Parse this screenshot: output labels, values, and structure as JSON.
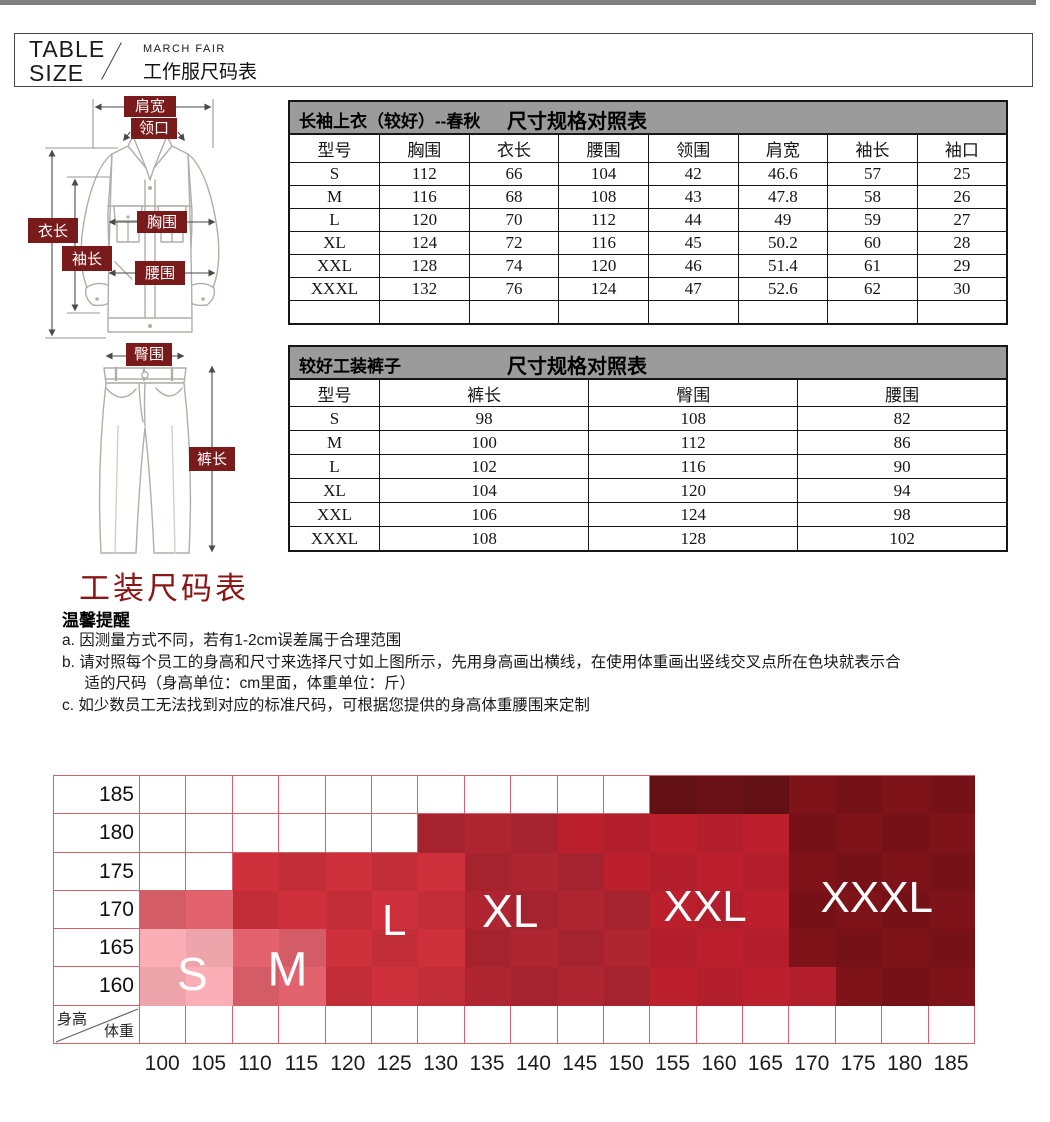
{
  "header": {
    "title_line1": "TABLE",
    "title_line2": "SIZE",
    "brand": "MARCH FAIR",
    "subtitle": "工作服尺码表"
  },
  "jacket_diagram": {
    "labels": {
      "shoulder": "肩宽",
      "collar": "领口",
      "body_length": "衣长",
      "sleeve_length": "袖长",
      "chest": "胸围",
      "waist": "腰围"
    },
    "label_bg": "#7a1b1b"
  },
  "pants_diagram": {
    "labels": {
      "hip": "臀围",
      "pants_length": "裤长"
    },
    "label_bg": "#7a1b1b"
  },
  "tables": [
    {
      "title": "长袖上衣（较好）--春秋",
      "title_right": "尺寸规格对照表",
      "columns": [
        "型号",
        "胸围",
        "衣长",
        "腰围",
        "领围",
        "肩宽",
        "袖长",
        "袖口"
      ],
      "rows": [
        [
          "S",
          "112",
          "66",
          "104",
          "42",
          "46.6",
          "57",
          "25"
        ],
        [
          "M",
          "116",
          "68",
          "108",
          "43",
          "47.8",
          "58",
          "26"
        ],
        [
          "L",
          "120",
          "70",
          "112",
          "44",
          "49",
          "59",
          "27"
        ],
        [
          "XL",
          "124",
          "72",
          "116",
          "45",
          "50.2",
          "60",
          "28"
        ],
        [
          "XXL",
          "128",
          "74",
          "120",
          "46",
          "51.4",
          "61",
          "29"
        ],
        [
          "XXXL",
          "132",
          "76",
          "124",
          "47",
          "52.6",
          "62",
          "30"
        ],
        [
          "",
          "",
          "",
          "",
          "",
          "",
          "",
          ""
        ]
      ]
    },
    {
      "title": "较好工装裤子",
      "title_right": "尺寸规格对照表",
      "columns": [
        "型号",
        "裤长",
        "臀围",
        "腰围"
      ],
      "rows": [
        [
          "S",
          "98",
          "108",
          "82"
        ],
        [
          "M",
          "100",
          "112",
          "86"
        ],
        [
          "L",
          "102",
          "116",
          "90"
        ],
        [
          "XL",
          "104",
          "120",
          "94"
        ],
        [
          "XXL",
          "106",
          "124",
          "98"
        ],
        [
          "XXXL",
          "108",
          "128",
          "102"
        ]
      ]
    }
  ],
  "notice": {
    "title": "工装尺码表",
    "subtitle": "温馨提醒",
    "notes": [
      "a. 因测量方式不同，若有1-2cm误差属于合理范围",
      "b. 请对照每个员工的身高和尺寸来选择尺寸如上图所示，先用身高画出横线，在使用体重画出竖线交叉点所在色块就表示合适的尺码（身高单位：cm里面，体重单位：斤）",
      "c. 如少数员工无法找到对应的标准尺码，可根据您提供的身高体重腰围来定制"
    ]
  },
  "chart_data": {
    "type": "heatmap",
    "title": "工装尺码选择表（身高/体重 对应尺码色块）",
    "y_axis_label": "身高",
    "x_axis_label": "体重",
    "x_values": [
      100,
      105,
      110,
      115,
      120,
      125,
      130,
      135,
      140,
      145,
      150,
      155,
      160,
      165,
      170,
      175,
      180,
      185
    ],
    "y_values": [
      185,
      180,
      175,
      170,
      165,
      160
    ],
    "legend": [
      "S",
      "M",
      "L",
      "XL",
      "XXL",
      "XXXL"
    ],
    "palette": {
      "0": "#ffffff",
      "1": "#f4a9b0",
      "2": "#db5f6a",
      "3": "#c82f3a",
      "4": "#aa2430",
      "5": "#b71f2c",
      "6": "#7a1318",
      "7": "#651014"
    },
    "grid_line_color": "#d4626e",
    "cells": [
      "000000000007776666",
      "000000444555556666",
      "003333344455556666",
      "223333344445556666",
      "112233344445556666",
      "112233344445555666"
    ],
    "size_labels": [
      {
        "label": "S",
        "col": 1.15,
        "row": 5.2,
        "size": 46
      },
      {
        "label": "M",
        "col": 3.2,
        "row": 5.1,
        "size": 48
      },
      {
        "label": "L",
        "col": 5.5,
        "row": 3.8,
        "size": 44
      },
      {
        "label": "XL",
        "col": 8.0,
        "row": 3.55,
        "size": 46
      },
      {
        "label": "XXL",
        "col": 12.2,
        "row": 3.45,
        "size": 44
      },
      {
        "label": "XXXL",
        "col": 15.9,
        "row": 3.2,
        "size": 44
      }
    ]
  }
}
